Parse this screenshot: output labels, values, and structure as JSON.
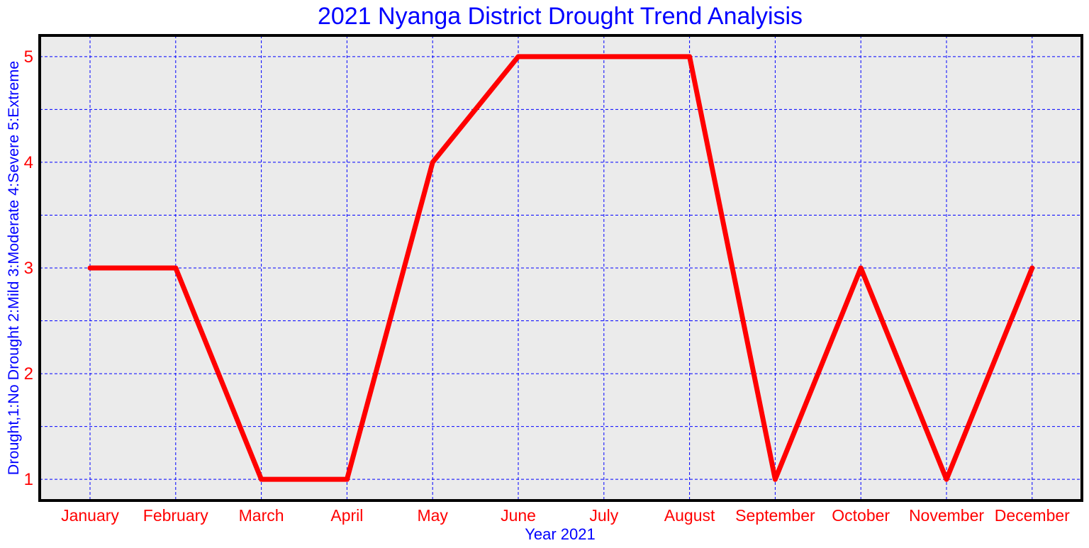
{
  "chart_data": {
    "type": "line",
    "title": "2021 Nyanga District Drought Trend Analyisis",
    "xlabel": "Year 2021",
    "ylabel": "Drought,1:No Drought 2:Mild 3:Moderate 4:Severe 5:Extreme",
    "categories": [
      "January",
      "February",
      "March",
      "April",
      "May",
      "June",
      "July",
      "August",
      "September",
      "October",
      "November",
      "December"
    ],
    "series": [
      {
        "values": [
          3,
          3,
          1,
          1,
          4,
          5,
          5,
          5,
          1,
          3,
          1,
          3
        ]
      }
    ],
    "ylim": [
      0.8,
      5.2
    ],
    "yticks": [
      "1",
      "2",
      "3",
      "4",
      "5"
    ],
    "grid": true,
    "colors": {
      "line": "#ff0000",
      "grid": "#0000ff",
      "title": "#0000ff",
      "axis_labels": "#0000ff",
      "tick_labels": "#ff0000",
      "plot_background": "#ebebeb",
      "frame": "#000000"
    }
  }
}
